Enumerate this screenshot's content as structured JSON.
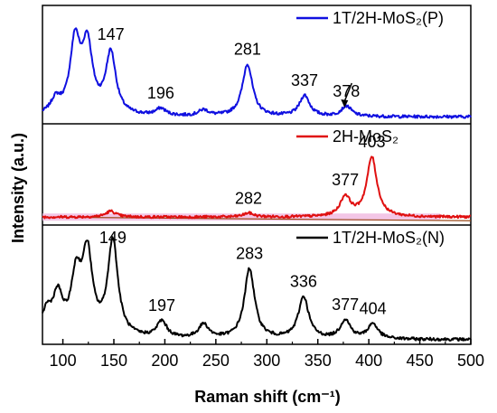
{
  "chart_data": {
    "type": "line",
    "xlabel": "Raman shift (cm⁻¹)",
    "ylabel": "Intensity (a.u.)",
    "xlim": [
      80,
      500
    ],
    "xticks": [
      100,
      150,
      200,
      250,
      300,
      350,
      400,
      450,
      500
    ],
    "colors": {
      "1T/2H-MoS2(P)": "#1010e0",
      "2H-MoS2": "#e01010",
      "1T/2H-MoS2(N)": "#000000",
      "baseline_fill": "#f0b8e0",
      "baseline_line": "#9a4a1a"
    },
    "panels": [
      {
        "legend": "1T/2H-MoS₂(P)",
        "series_color": "#1010e0",
        "baseline": 0.06,
        "peaks": [
          [
            93,
            0.12
          ],
          [
            112,
            0.62
          ],
          [
            124,
            0.58
          ],
          [
            147,
            0.53
          ],
          [
            196,
            0.06
          ],
          [
            238,
            0.05
          ],
          [
            281,
            0.45
          ],
          [
            337,
            0.18
          ],
          [
            378,
            0.09
          ]
        ],
        "labels": [
          {
            "x": 147,
            "text": "147"
          },
          {
            "x": 196,
            "text": "196"
          },
          {
            "x": 281,
            "text": "281"
          },
          {
            "x": 337,
            "text": "337"
          },
          {
            "x": 378,
            "text": "378"
          }
        ]
      },
      {
        "legend": "2H-MoS₂",
        "series_color": "#e01010",
        "baseline": 0.08,
        "peaks": [
          [
            147,
            0.06
          ],
          [
            282,
            0.04
          ],
          [
            377,
            0.2
          ],
          [
            403,
            0.6
          ]
        ],
        "labels": [
          {
            "x": 282,
            "text": "282"
          },
          {
            "x": 377,
            "text": "377"
          },
          {
            "x": 403,
            "text": "403"
          }
        ]
      },
      {
        "legend": "1T/2H-MoS₂(N)",
        "series_color": "#000000",
        "baseline": 0.04,
        "peaks": [
          [
            84,
            0.2
          ],
          [
            95,
            0.33
          ],
          [
            113,
            0.48
          ],
          [
            124,
            0.68
          ],
          [
            149,
            0.82
          ],
          [
            197,
            0.14
          ],
          [
            238,
            0.12
          ],
          [
            283,
            0.6
          ],
          [
            336,
            0.36
          ],
          [
            377,
            0.16
          ],
          [
            404,
            0.13
          ]
        ],
        "labels": [
          {
            "x": 149,
            "text": "149"
          },
          {
            "x": 197,
            "text": "197"
          },
          {
            "x": 283,
            "text": "283"
          },
          {
            "x": 336,
            "text": "336"
          },
          {
            "x": 377,
            "text": "377"
          },
          {
            "x": 404,
            "text": "404"
          }
        ]
      }
    ]
  }
}
